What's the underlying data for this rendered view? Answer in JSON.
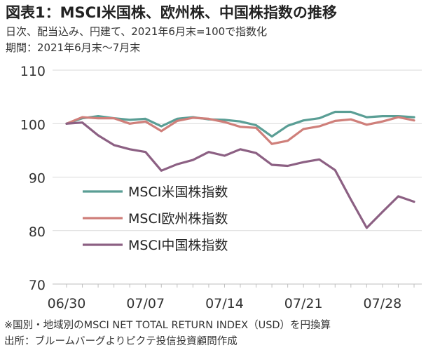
{
  "header": {
    "title": "図表1：MSCI米国株、欧州株、中国株指数の推移",
    "subtitle_1": "日次、配当込み、円建て、2021年6月末=100で指数化",
    "subtitle_2": "期間：2021年6月末～7月末"
  },
  "footer": {
    "note": "※国別・地域別のMSCI NET TOTAL RETURN INDEX（USD）を円換算",
    "source": "出所：ブルームバーグよりピクテ投信投資顧問作成"
  },
  "chart_data": {
    "type": "line",
    "title": "図表1：MSCI米国株、欧州株、中国株指数の推移",
    "ylim": [
      70,
      110
    ],
    "yticks": [
      70,
      80,
      90,
      100,
      110
    ],
    "xtick_labels": [
      "06/30",
      "07/07",
      "07/14",
      "07/21",
      "07/28"
    ],
    "xtick_index": [
      0,
      5,
      10,
      15,
      20
    ],
    "grid": "horizontal",
    "legend_position": "center-left",
    "x": [
      "06/30",
      "07/01",
      "07/02",
      "07/05",
      "07/06",
      "07/07",
      "07/08",
      "07/09",
      "07/12",
      "07/13",
      "07/14",
      "07/15",
      "07/16",
      "07/19",
      "07/20",
      "07/21",
      "07/22",
      "07/23",
      "07/26",
      "07/27",
      "07/28",
      "07/29",
      "07/30"
    ],
    "series": [
      {
        "name": "MSCI米国株指数",
        "color": "#5a9e95",
        "values": [
          100,
          101.0,
          101.4,
          101.0,
          100.7,
          100.9,
          99.5,
          100.9,
          101.2,
          100.8,
          100.7,
          100.4,
          99.7,
          97.6,
          99.6,
          100.6,
          101.0,
          102.2,
          102.2,
          101.2,
          101.4,
          101.4,
          101.2
        ]
      },
      {
        "name": "MSCI欧州株指数",
        "color": "#cf7f7a",
        "values": [
          100,
          101.2,
          101.0,
          101.0,
          100.0,
          100.4,
          98.6,
          100.5,
          101.1,
          100.9,
          100.3,
          99.4,
          99.2,
          96.2,
          96.8,
          99.0,
          99.5,
          100.5,
          100.8,
          99.8,
          100.4,
          101.2,
          100.6
        ]
      },
      {
        "name": "MSCI中国株指数",
        "color": "#8c6083",
        "values": [
          100,
          100.2,
          97.8,
          96.0,
          95.2,
          94.7,
          91.2,
          92.4,
          93.2,
          94.7,
          94.0,
          95.2,
          94.5,
          92.3,
          92.1,
          92.8,
          93.3,
          91.3,
          85.8,
          80.5,
          83.5,
          86.4,
          85.4
        ]
      }
    ]
  }
}
